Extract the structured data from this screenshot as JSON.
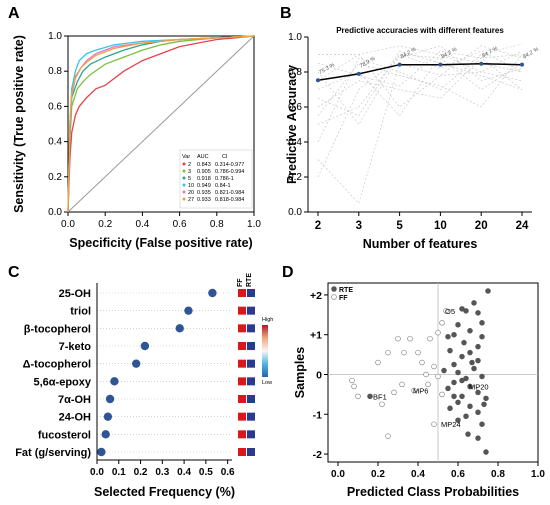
{
  "panel_labels": [
    "A",
    "B",
    "C",
    "D"
  ],
  "chart_data": [
    {
      "panel": "A",
      "type": "line",
      "xlabel": "Specificity (False positive rate)",
      "ylabel": "Sensitivity (True positive rate)",
      "xlim": [
        0,
        1
      ],
      "ylim": [
        0,
        1
      ],
      "xticks": [
        "0.0",
        "0.2",
        "0.4",
        "0.6",
        "0.8",
        "1.0"
      ],
      "yticks": [
        "0.0",
        "0.2",
        "0.4",
        "0.6",
        "0.8",
        "1.0"
      ],
      "grid": false,
      "legend_position": "bottom-right",
      "legend_header": [
        "Var",
        "AUC",
        "CI"
      ],
      "series": [
        {
          "name": "2",
          "auc": "0.843",
          "ci": "0.314-0.977",
          "color": "#e8434b",
          "x": [
            0,
            0.01,
            0.02,
            0.04,
            0.06,
            0.1,
            0.15,
            0.2,
            0.3,
            0.4,
            0.5,
            0.6,
            0.7,
            0.8,
            0.9,
            1.0
          ],
          "y": [
            0,
            0.3,
            0.45,
            0.55,
            0.6,
            0.65,
            0.7,
            0.72,
            0.8,
            0.86,
            0.9,
            0.94,
            0.96,
            0.98,
            0.99,
            1.0
          ]
        },
        {
          "name": "3",
          "auc": "0.905",
          "ci": "0.786-0.994",
          "color": "#7fbf3f",
          "x": [
            0,
            0.01,
            0.02,
            0.05,
            0.08,
            0.12,
            0.2,
            0.3,
            0.4,
            0.5,
            0.6,
            0.8,
            1.0
          ],
          "y": [
            0,
            0.4,
            0.6,
            0.7,
            0.74,
            0.78,
            0.84,
            0.88,
            0.92,
            0.95,
            0.97,
            0.99,
            1.0
          ]
        },
        {
          "name": "5",
          "auc": "0.918",
          "ci": "0.786-1",
          "color": "#2ca58d",
          "x": [
            0,
            0.01,
            0.02,
            0.05,
            0.08,
            0.12,
            0.2,
            0.3,
            0.4,
            0.5,
            0.6,
            0.8,
            1.0
          ],
          "y": [
            0,
            0.45,
            0.65,
            0.74,
            0.8,
            0.84,
            0.88,
            0.92,
            0.95,
            0.97,
            0.98,
            0.99,
            1.0
          ]
        },
        {
          "name": "10",
          "auc": "0.949",
          "ci": "0.84-1",
          "color": "#35c4e8",
          "x": [
            0,
            0.01,
            0.02,
            0.04,
            0.06,
            0.1,
            0.15,
            0.25,
            0.4,
            0.6,
            0.8,
            1.0
          ],
          "y": [
            0,
            0.5,
            0.7,
            0.8,
            0.86,
            0.9,
            0.92,
            0.95,
            0.97,
            0.98,
            0.99,
            1.0
          ]
        },
        {
          "name": "20",
          "auc": "0.935",
          "ci": "0.821-0.984",
          "color": "#e07cc3",
          "x": [
            0,
            0.01,
            0.02,
            0.04,
            0.07,
            0.1,
            0.15,
            0.25,
            0.4,
            0.6,
            0.8,
            1.0
          ],
          "y": [
            0,
            0.48,
            0.66,
            0.76,
            0.82,
            0.86,
            0.9,
            0.94,
            0.96,
            0.98,
            0.99,
            1.0
          ]
        },
        {
          "name": "27",
          "auc": "0.933",
          "ci": "0.818-0.984",
          "color": "#f0a040",
          "x": [
            0,
            0.01,
            0.02,
            0.04,
            0.07,
            0.1,
            0.15,
            0.25,
            0.4,
            0.6,
            0.8,
            1.0
          ],
          "y": [
            0,
            0.5,
            0.67,
            0.77,
            0.82,
            0.85,
            0.89,
            0.93,
            0.96,
            0.98,
            0.99,
            1.0
          ]
        }
      ]
    },
    {
      "panel": "B",
      "type": "line",
      "title": "Predictive accuracies with different features",
      "xlabel": "Number of features",
      "ylabel": "Predictive Accuracy",
      "categories": [
        "2",
        "3",
        "5",
        "10",
        "20",
        "24"
      ],
      "ylim": [
        0,
        1
      ],
      "yticks": [
        "0.0",
        "0.2",
        "0.4",
        "0.6",
        "0.8",
        "1.0"
      ],
      "grid": false,
      "series": [
        {
          "values": [
            0.753,
            0.789,
            0.842,
            0.842,
            0.847,
            0.842
          ],
          "labels": [
            "75.3 %",
            "78.9 %",
            "84.2 %",
            "84.2 %",
            "84.7 %",
            "84.2 %"
          ]
        }
      ],
      "background_series_style": "light grey dashed lines"
    },
    {
      "panel": "C",
      "type": "scatter",
      "xlabel": "Selected Frequency (%)",
      "xlim": [
        0,
        0.62
      ],
      "xticks": [
        "0.0",
        "0.1",
        "0.2",
        "0.3",
        "0.4",
        "0.5",
        "0.6"
      ],
      "categories": [
        "25-OH",
        "triol",
        "β-tocopherol",
        "7-keto",
        "Δ-tocopherol",
        "5,6α-epoxy",
        "7α-OH",
        "24-OH",
        "fucosterol",
        "Fat (g/serving)"
      ],
      "values": [
        0.53,
        0.42,
        0.38,
        0.22,
        0.18,
        0.08,
        0.06,
        0.05,
        0.04,
        0.02
      ],
      "point_color": "#2f5597",
      "heatmap_columns": [
        "FF",
        "RTE"
      ],
      "heatmap_values": [
        [
          "high",
          "low"
        ],
        [
          "high",
          "low"
        ],
        [
          "high",
          "low"
        ],
        [
          "high",
          "low"
        ],
        [
          "high",
          "low"
        ],
        [
          "high",
          "low"
        ],
        [
          "high",
          "low"
        ],
        [
          "high",
          "low"
        ],
        [
          "high",
          "low"
        ],
        [
          "high",
          "low"
        ]
      ],
      "colorbar": {
        "high_label": "High",
        "low_label": "Low"
      },
      "grid": "horizontal dotted"
    },
    {
      "panel": "D",
      "type": "scatter",
      "xlabel": "Predicted Class Probabilities",
      "ylabel": "Samples",
      "xlim": [
        -0.05,
        1.0
      ],
      "ylim": [
        -2.2,
        2.3
      ],
      "xticks": [
        "0.0",
        "0.2",
        "0.4",
        "0.6",
        "0.8",
        "1.0"
      ],
      "yticks": [
        "+2",
        "+1",
        "0",
        "-1",
        "-2"
      ],
      "reference_lines": {
        "x": 0.5,
        "y": 0
      },
      "legend_position": "top-left",
      "series": [
        {
          "name": "RTE",
          "marker": "filled",
          "color": "#555555",
          "points": [
            [
              0.75,
              2.1
            ],
            [
              0.68,
              1.8
            ],
            [
              0.64,
              1.6
            ],
            [
              0.7,
              1.55
            ],
            [
              0.72,
              1.3
            ],
            [
              0.6,
              1.25
            ],
            [
              0.66,
              1.1
            ],
            [
              0.58,
              1.0
            ],
            [
              0.72,
              0.95
            ],
            [
              0.63,
              0.8
            ],
            [
              0.7,
              0.7
            ],
            [
              0.56,
              0.6
            ],
            [
              0.66,
              0.55
            ],
            [
              0.62,
              0.45
            ],
            [
              0.7,
              0.35
            ],
            [
              0.58,
              0.25
            ],
            [
              0.68,
              0.15
            ],
            [
              0.6,
              0.05
            ],
            [
              0.72,
              -0.05
            ],
            [
              0.64,
              -0.1
            ],
            [
              0.58,
              -0.2
            ],
            [
              0.66,
              -0.3
            ],
            [
              0.55,
              -0.35
            ],
            [
              0.7,
              -0.45
            ],
            [
              0.62,
              -0.55
            ],
            [
              0.74,
              -0.6
            ],
            [
              0.6,
              -0.7
            ],
            [
              0.66,
              -0.8
            ],
            [
              0.56,
              -0.85
            ],
            [
              0.7,
              -0.95
            ],
            [
              0.64,
              -1.05
            ],
            [
              0.6,
              -1.15
            ],
            [
              0.72,
              -1.25
            ],
            [
              0.65,
              -1.5
            ],
            [
              0.7,
              -1.6
            ],
            [
              0.74,
              -1.95
            ],
            [
              0.16,
              -0.55
            ],
            [
              0.55,
              0.95
            ],
            [
              0.62,
              1.65
            ],
            [
              0.67,
              0.3
            ],
            [
              0.53,
              0.1
            ],
            [
              0.62,
              -0.15
            ],
            [
              0.73,
              -0.75
            ],
            [
              0.58,
              -0.55
            ]
          ]
        },
        {
          "name": "FF",
          "marker": "open",
          "color": "#555555",
          "points": [
            [
              0.54,
              1.6
            ],
            [
              0.52,
              1.3
            ],
            [
              0.5,
              1.05
            ],
            [
              0.46,
              0.9
            ],
            [
              0.4,
              0.55
            ],
            [
              0.36,
              0.9
            ],
            [
              0.3,
              0.9
            ],
            [
              0.25,
              0.55
            ],
            [
              0.42,
              0.3
            ],
            [
              0.48,
              0.2
            ],
            [
              0.5,
              -0.05
            ],
            [
              0.45,
              -0.25
            ],
            [
              0.38,
              -0.4
            ],
            [
              0.32,
              -0.25
            ],
            [
              0.28,
              -0.45
            ],
            [
              0.22,
              -0.75
            ],
            [
              0.08,
              -0.3
            ],
            [
              0.1,
              -0.55
            ],
            [
              0.07,
              -0.15
            ],
            [
              0.25,
              -1.55
            ],
            [
              0.48,
              -1.25
            ],
            [
              0.52,
              -0.5
            ],
            [
              0.44,
              0.0
            ],
            [
              0.33,
              0.55
            ],
            [
              0.2,
              0.3
            ]
          ]
        }
      ],
      "annotations": [
        {
          "text": "O5",
          "x": 0.52,
          "y": 1.6
        },
        {
          "text": "MP6",
          "x": 0.36,
          "y": -0.4
        },
        {
          "text": "MP20",
          "x": 0.64,
          "y": -0.3
        },
        {
          "text": "BF1",
          "x": 0.16,
          "y": -0.55
        },
        {
          "text": "MP24",
          "x": 0.5,
          "y": -1.25
        }
      ]
    }
  ]
}
